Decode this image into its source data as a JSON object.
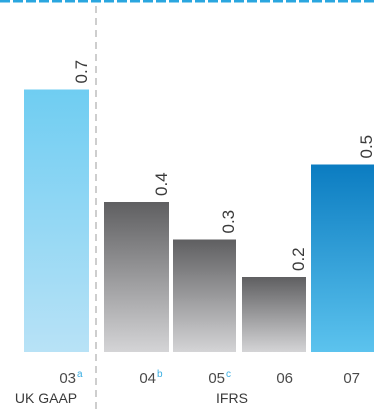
{
  "chart_data": {
    "type": "bar",
    "title": "",
    "xlabel": "",
    "ylabel": "",
    "ylim": [
      0,
      1.0
    ],
    "grid": false,
    "categories": [
      "03",
      "04",
      "05",
      "06",
      "07"
    ],
    "category_superscripts": [
      "a",
      "b",
      "c",
      "",
      ""
    ],
    "values": [
      0.7,
      0.4,
      0.3,
      0.2,
      0.5
    ],
    "value_labels": [
      "0.7",
      "0.4",
      "0.3",
      "0.2",
      "0.5"
    ],
    "groups": [
      {
        "label": "UK GAAP",
        "categories": [
          "03"
        ]
      },
      {
        "label": "IFRS",
        "categories": [
          "04",
          "05",
          "06",
          "07"
        ]
      }
    ],
    "colors": {
      "uk_gaap_bar_top": "#6fcdf2",
      "uk_gaap_bar_bottom": "#b8e2f6",
      "ifrs_bar_top": "#5f5f61",
      "ifrs_bar_bottom": "#d4d4d6",
      "highlight_bar_top": "#0b7cc1",
      "highlight_bar_bottom": "#5cc3ee",
      "superscript": "#3aaee2",
      "divider": "#bdbdbd",
      "header_strip": "#2aa6df"
    }
  }
}
